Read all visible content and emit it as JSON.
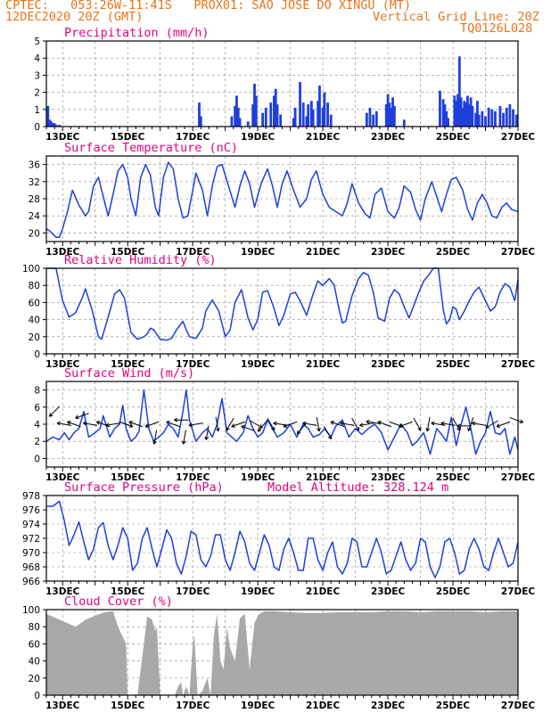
{
  "header": {
    "line1": "CPTEC:   053:26W-11:41S   PROX01: SAO JOSE DO XINGU (MT)",
    "line2_left": "12DEC2020 20Z (GMT)",
    "line2_right": "Vertical Grid Line: 20Z",
    "line3_right": "TQ0126L028"
  },
  "colors": {
    "header": "#e8731a",
    "title": "#e6007e",
    "line": "#1f3fdc",
    "bar": "#1f3fdc",
    "cloud": "#a8a8a8"
  },
  "x_ticks": [
    "13DEC",
    "15DEC",
    "17DEC",
    "19DEC",
    "21DEC",
    "23DEC",
    "25DEC",
    "27DEC"
  ],
  "chart_data": [
    {
      "type": "bar",
      "title": "Precipitation (mm/h)",
      "ylim": [
        0,
        5
      ],
      "yticks": [
        0,
        1,
        2,
        3,
        4,
        5
      ],
      "x_range_days": [
        12.5,
        27.0
      ],
      "x": [
        12.55,
        12.6,
        12.65,
        12.7,
        12.75,
        12.8,
        12.9,
        17.2,
        17.25,
        18.2,
        18.3,
        18.35,
        18.4,
        18.45,
        18.7,
        18.85,
        18.9,
        18.95,
        19.15,
        19.25,
        19.4,
        19.5,
        19.55,
        19.6,
        19.7,
        20.1,
        20.15,
        20.3,
        20.4,
        20.5,
        20.55,
        20.65,
        20.7,
        20.85,
        20.9,
        21.0,
        21.05,
        21.15,
        21.25,
        22.35,
        22.45,
        22.55,
        22.65,
        22.95,
        23.0,
        23.05,
        23.1,
        23.15,
        23.2,
        23.5,
        24.6,
        24.7,
        24.75,
        24.8,
        24.85,
        25.05,
        25.1,
        25.15,
        25.2,
        25.25,
        25.3,
        25.35,
        25.4,
        25.45,
        25.5,
        25.55,
        25.6,
        25.7,
        25.75,
        25.8,
        25.9,
        26.0,
        26.1,
        26.2,
        26.3,
        26.45,
        26.55,
        26.65,
        26.75,
        26.85,
        26.95
      ],
      "values": [
        1.2,
        0.4,
        0.3,
        0.2,
        0.2,
        0.1,
        0.1,
        1.4,
        0.6,
        0.6,
        1.2,
        1.8,
        1.1,
        0.5,
        0.3,
        1.3,
        2.5,
        1.8,
        0.8,
        1.1,
        1.4,
        1.8,
        2.2,
        1.3,
        0.7,
        0.5,
        1.1,
        2.6,
        1.4,
        0.6,
        1.3,
        1.5,
        1.0,
        1.5,
        2.4,
        1.1,
        2.0,
        1.4,
        0.7,
        0.8,
        1.1,
        0.7,
        0.9,
        1.3,
        1.9,
        1.4,
        1.1,
        1.7,
        1.2,
        0.4,
        2.1,
        1.6,
        1.3,
        0.9,
        0.5,
        1.8,
        1.5,
        1.9,
        4.1,
        1.7,
        1.1,
        1.5,
        1.4,
        1.8,
        1.3,
        1.7,
        1.2,
        0.8,
        1.5,
        0.7,
        0.9,
        0.6,
        1.1,
        1.0,
        0.9,
        1.2,
        0.8,
        1.1,
        1.3,
        1.0,
        0.7
      ]
    },
    {
      "type": "line",
      "title": "Surface Temperature (nC)",
      "ylim": [
        18,
        38
      ],
      "yticks": [
        20,
        24,
        28,
        32,
        36
      ],
      "x_range_days": [
        12.5,
        27.0
      ],
      "x": [
        12.5,
        12.6,
        12.8,
        12.9,
        13.0,
        13.15,
        13.3,
        13.5,
        13.7,
        13.8,
        13.95,
        14.1,
        14.25,
        14.4,
        14.55,
        14.7,
        14.85,
        15.0,
        15.1,
        15.25,
        15.4,
        15.55,
        15.7,
        15.85,
        15.95,
        16.1,
        16.25,
        16.4,
        16.55,
        16.7,
        16.85,
        17.0,
        17.1,
        17.3,
        17.45,
        17.6,
        17.75,
        17.9,
        18.1,
        18.3,
        18.45,
        18.6,
        18.75,
        18.9,
        19.1,
        19.3,
        19.45,
        19.6,
        19.75,
        19.9,
        20.1,
        20.3,
        20.5,
        20.65,
        20.8,
        21.0,
        21.2,
        21.4,
        21.6,
        21.75,
        21.9,
        22.1,
        22.3,
        22.45,
        22.6,
        22.8,
        23.0,
        23.2,
        23.35,
        23.5,
        23.7,
        23.85,
        24.0,
        24.15,
        24.35,
        24.5,
        24.65,
        24.8,
        24.95,
        25.1,
        25.3,
        25.45,
        25.6,
        25.75,
        25.9,
        26.05,
        26.2,
        26.35,
        26.5,
        26.65,
        26.8,
        27.0
      ],
      "values": [
        21,
        20.5,
        19,
        19,
        21,
        25,
        30,
        26.5,
        24,
        25,
        31,
        33,
        28.5,
        24,
        29,
        34.5,
        36,
        33,
        28,
        24,
        33,
        36,
        33.5,
        26,
        24,
        33,
        36.5,
        35,
        28,
        23.5,
        24,
        30,
        34,
        30,
        24,
        31,
        35.5,
        36,
        31,
        26,
        31,
        34.5,
        31.5,
        26,
        31.5,
        35,
        31,
        26,
        31.5,
        34.5,
        30,
        26,
        28,
        32.5,
        34.5,
        29,
        26,
        25,
        24,
        27,
        31.5,
        27,
        24.5,
        23.5,
        29,
        30.5,
        25,
        23.5,
        26,
        31,
        29.5,
        25.5,
        23,
        28,
        32,
        28.5,
        25,
        29,
        32.5,
        33,
        30,
        25.5,
        23,
        27,
        29,
        27,
        24,
        23.5,
        26,
        27,
        25.5,
        25
      ]
    },
    {
      "type": "line",
      "title": "Relative Humidity (%)",
      "ylim": [
        0,
        100
      ],
      "yticks": [
        0,
        20,
        40,
        60,
        80,
        100
      ],
      "x_range_days": [
        12.5,
        27.0
      ],
      "x": [
        12.5,
        12.6,
        12.7,
        12.8,
        13.0,
        13.2,
        13.4,
        13.6,
        13.7,
        13.9,
        14.1,
        14.2,
        14.4,
        14.6,
        14.75,
        14.9,
        15.1,
        15.3,
        15.5,
        15.6,
        15.7,
        15.8,
        16.0,
        16.2,
        16.35,
        16.5,
        16.7,
        16.8,
        16.9,
        17.1,
        17.3,
        17.4,
        17.6,
        17.8,
        18.0,
        18.15,
        18.3,
        18.5,
        18.7,
        18.85,
        19.0,
        19.15,
        19.3,
        19.5,
        19.65,
        19.8,
        20.0,
        20.15,
        20.3,
        20.5,
        20.7,
        20.85,
        21.0,
        21.2,
        21.35,
        21.5,
        21.6,
        21.7,
        21.9,
        22.1,
        22.25,
        22.4,
        22.55,
        22.7,
        22.9,
        23.05,
        23.2,
        23.35,
        23.5,
        23.65,
        23.8,
        23.95,
        24.1,
        24.25,
        24.4,
        24.55,
        24.7,
        24.8,
        24.9,
        25.0,
        25.1,
        25.2,
        25.35,
        25.5,
        25.65,
        25.8,
        26.0,
        26.15,
        26.3,
        26.45,
        26.6,
        26.75,
        26.9,
        27.0
      ],
      "values": [
        100,
        100,
        100,
        100,
        62,
        43,
        48,
        65,
        76,
        52,
        20,
        17,
        43,
        70,
        75,
        65,
        25,
        17,
        20,
        23,
        30,
        28,
        17,
        16,
        18,
        28,
        38,
        28,
        20,
        18,
        30,
        50,
        63,
        50,
        20,
        28,
        60,
        75,
        42,
        28,
        40,
        72,
        74,
        53,
        33,
        45,
        70,
        72,
        62,
        45,
        70,
        85,
        80,
        88,
        80,
        52,
        36,
        38,
        68,
        88,
        95,
        92,
        72,
        42,
        38,
        65,
        75,
        70,
        55,
        42,
        57,
        72,
        85,
        92,
        100,
        100,
        52,
        35,
        40,
        55,
        52,
        40,
        50,
        62,
        72,
        78,
        62,
        50,
        55,
        72,
        82,
        78,
        62,
        87
      ]
    },
    {
      "type": "line",
      "title": "Surface Wind (m/s)",
      "ylim": [
        -1,
        9
      ],
      "yticks": [
        0,
        2,
        4,
        6,
        8
      ],
      "x_range_days": [
        12.5,
        27.0
      ],
      "x": [
        12.5,
        12.7,
        12.9,
        13.05,
        13.2,
        13.35,
        13.5,
        13.65,
        13.8,
        14.0,
        14.15,
        14.25,
        14.45,
        14.6,
        14.75,
        14.85,
        14.95,
        15.1,
        15.25,
        15.35,
        15.5,
        15.65,
        15.8,
        15.95,
        16.1,
        16.25,
        16.4,
        16.55,
        16.7,
        16.8,
        16.9,
        17.1,
        17.3,
        17.45,
        17.6,
        17.75,
        17.9,
        18.05,
        18.2,
        18.35,
        18.55,
        18.7,
        18.85,
        19.0,
        19.15,
        19.3,
        19.45,
        19.6,
        19.8,
        20.0,
        20.2,
        20.4,
        20.55,
        20.7,
        20.9,
        21.05,
        21.25,
        21.4,
        21.6,
        21.8,
        22.0,
        22.2,
        22.4,
        22.6,
        22.8,
        23.0,
        23.2,
        23.4,
        23.6,
        23.75,
        23.9,
        24.1,
        24.3,
        24.5,
        24.65,
        24.8,
        24.95,
        25.1,
        25.25,
        25.4,
        25.55,
        25.7,
        25.85,
        26.0,
        26.15,
        26.3,
        26.45,
        26.6,
        26.75,
        26.9,
        27.0
      ],
      "values": [
        2,
        2.5,
        2.2,
        3,
        2.2,
        3,
        3.5,
        5.5,
        2.5,
        3,
        3.5,
        5,
        2.5,
        3.5,
        4,
        6.2,
        3.5,
        2,
        2.5,
        3.2,
        8,
        3.5,
        2,
        2.5,
        3,
        4,
        3.5,
        2.5,
        5.5,
        8,
        4.5,
        2,
        3,
        3.5,
        2.5,
        4,
        7,
        3,
        2.5,
        2,
        3,
        5,
        3.5,
        2.5,
        3,
        4.5,
        3.5,
        2.5,
        3,
        4,
        2.5,
        4,
        3.5,
        2.5,
        2.8,
        3.5,
        2.5,
        3.8,
        4.5,
        2.5,
        3.5,
        2.8,
        3.5,
        4,
        3,
        1,
        2.5,
        4,
        3,
        1.5,
        2,
        3,
        0.5,
        3.5,
        2.8,
        2,
        4.8,
        1.5,
        4,
        6,
        3.5,
        0.5,
        2,
        3,
        5.5,
        3,
        2.8,
        3.5,
        0.5,
        2.5,
        1
      ]
    },
    {
      "type": "line",
      "title": "Surface Pressure (hPa)",
      "subtitle": "Model Altitude: 328.124 m",
      "ylim": [
        966,
        978
      ],
      "yticks": [
        966,
        968,
        970,
        972,
        974,
        976,
        978
      ],
      "x_range_days": [
        12.5,
        27.0
      ],
      "x": [
        12.5,
        12.7,
        12.9,
        13.05,
        13.2,
        13.35,
        13.5,
        13.65,
        13.8,
        13.95,
        14.1,
        14.25,
        14.4,
        14.55,
        14.7,
        14.85,
        15.0,
        15.15,
        15.3,
        15.45,
        15.6,
        15.75,
        15.9,
        16.05,
        16.2,
        16.35,
        16.5,
        16.65,
        16.8,
        16.95,
        17.1,
        17.25,
        17.4,
        17.55,
        17.7,
        17.85,
        18.0,
        18.15,
        18.3,
        18.45,
        18.6,
        18.75,
        18.9,
        19.05,
        19.2,
        19.35,
        19.5,
        19.65,
        19.8,
        19.95,
        20.1,
        20.25,
        20.4,
        20.55,
        20.7,
        20.85,
        21.0,
        21.15,
        21.3,
        21.45,
        21.6,
        21.75,
        21.9,
        22.05,
        22.2,
        22.35,
        22.5,
        22.65,
        22.8,
        22.95,
        23.1,
        23.25,
        23.4,
        23.55,
        23.7,
        23.85,
        24.0,
        24.15,
        24.3,
        24.45,
        24.6,
        24.75,
        24.9,
        25.05,
        25.2,
        25.35,
        25.5,
        25.65,
        25.8,
        25.95,
        26.1,
        26.25,
        26.4,
        26.55,
        26.7,
        26.85,
        27.0
      ],
      "values": [
        976.5,
        976.5,
        977.2,
        974.5,
        971,
        972.5,
        974.3,
        971.5,
        969,
        970.5,
        973.5,
        974.2,
        971,
        969,
        971,
        973.5,
        972,
        967.5,
        968.5,
        972,
        973.5,
        970.5,
        968,
        970.5,
        973.2,
        972,
        968.5,
        967,
        969.5,
        973,
        972.5,
        969,
        968,
        969.5,
        972.5,
        972.5,
        969,
        967.5,
        970,
        973,
        971.5,
        968.5,
        967.5,
        970,
        972.5,
        971,
        968,
        967.5,
        970.5,
        972,
        970,
        967.5,
        967.5,
        972,
        972,
        969,
        967.5,
        970,
        971.5,
        968,
        967,
        968.5,
        972,
        971.5,
        968,
        968,
        970,
        972,
        970,
        967,
        967.5,
        969.5,
        971.5,
        969,
        967.5,
        968.5,
        972,
        971.5,
        968,
        966.5,
        968,
        971.5,
        972,
        970,
        967,
        967.5,
        970.5,
        972,
        970.5,
        968,
        967.5,
        970,
        972,
        970,
        968,
        968.5,
        971.5
      ]
    },
    {
      "type": "area",
      "title": "Cloud Cover (%)",
      "ylim": [
        0,
        100
      ],
      "yticks": [
        0,
        20,
        40,
        60,
        80,
        100
      ],
      "x_range_days": [
        12.5,
        27.0
      ],
      "x": [
        12.5,
        12.8,
        13.1,
        13.4,
        13.7,
        14.0,
        14.3,
        14.55,
        14.7,
        14.95,
        15.0,
        15.1,
        15.3,
        15.5,
        15.6,
        15.75,
        15.85,
        15.9,
        16.0,
        16.15,
        16.25,
        16.35,
        16.45,
        16.55,
        16.65,
        16.7,
        16.8,
        16.9,
        17.0,
        17.05,
        17.15,
        17.3,
        17.45,
        17.55,
        17.65,
        17.75,
        17.85,
        17.95,
        18.05,
        18.15,
        18.3,
        18.45,
        18.6,
        18.75,
        18.9,
        19.05,
        19.2,
        19.5,
        20.0,
        20.5,
        21.0,
        21.5,
        22.0,
        22.5,
        23.0,
        23.5,
        24.0,
        24.5,
        25.0,
        25.5,
        26.0,
        26.5,
        27.0
      ],
      "values": [
        95,
        90,
        85,
        80,
        88,
        93,
        97,
        98,
        80,
        60,
        0,
        0,
        0,
        60,
        92,
        88,
        75,
        80,
        0,
        0,
        0,
        0,
        0,
        10,
        15,
        0,
        10,
        0,
        60,
        70,
        0,
        5,
        20,
        0,
        70,
        95,
        40,
        30,
        80,
        55,
        40,
        90,
        95,
        30,
        85,
        95,
        98,
        98,
        97,
        96,
        96,
        97,
        97,
        97,
        98,
        98,
        97,
        98,
        98,
        98,
        97,
        98,
        98
      ]
    }
  ]
}
